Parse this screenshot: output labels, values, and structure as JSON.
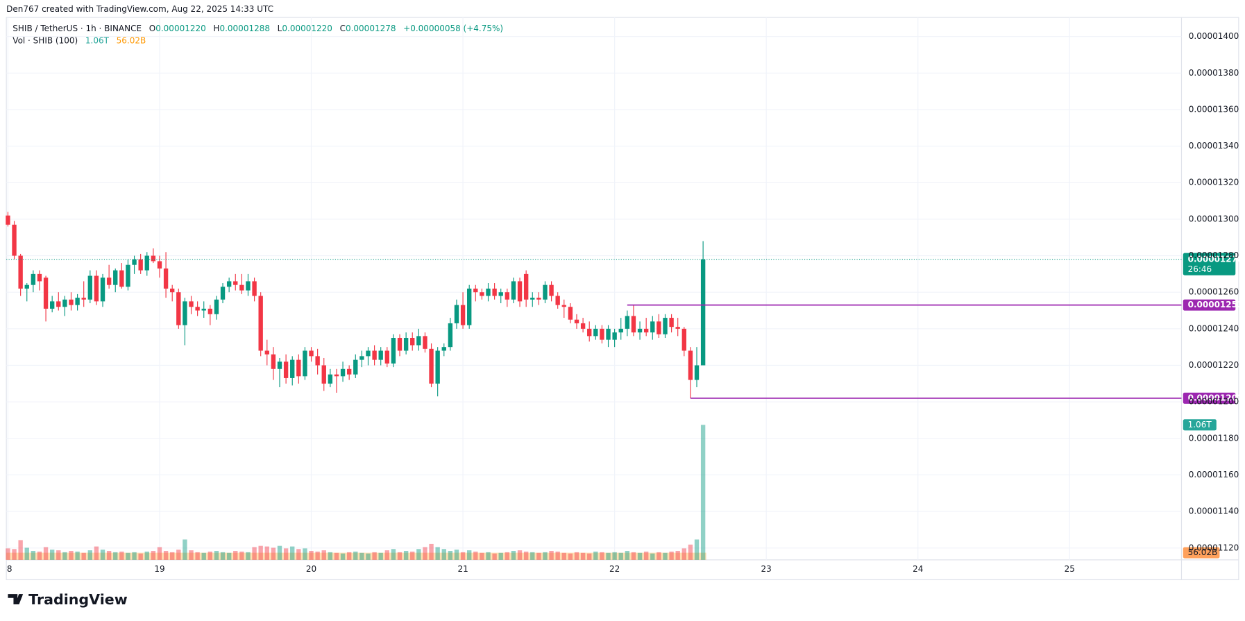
{
  "chart_data": {
    "type": "candlestick",
    "attribution": "Den767 created with TradingView.com, Aug 22, 2025 14:33 UTC",
    "title": "SHIB / TetherUS · 1h · BINANCE",
    "legend": [
      {
        "key": "O",
        "text": "0.00001220"
      },
      {
        "key": "H",
        "text": "0.00001288"
      },
      {
        "key": "L",
        "text": "0.00001220"
      },
      {
        "key": "C",
        "text": "0.00001278"
      }
    ],
    "change": "+0.00000058 (+4.75%)",
    "brand": "TradingView",
    "up_color": "#089981",
    "down_color": "#f23645",
    "open": [
      1.302e-05,
      1.297e-05,
      1.28e-05,
      1.262e-05,
      1.264e-05,
      1.27e-05,
      1.268e-05,
      1.251e-05,
      1.255e-05,
      1.252e-05,
      1.256e-05,
      1.253e-05,
      1.257e-05,
      1.256e-05,
      1.269e-05,
      1.255e-05,
      1.268e-05,
      1.264e-05,
      1.272e-05,
      1.263e-05,
      1.275e-05,
      1.278e-05,
      1.272e-05,
      1.28e-05,
      1.277e-05,
      1.273e-05,
      1.262e-05,
      1.26e-05,
      1.242e-05,
      1.255e-05,
      1.252e-05,
      1.25e-05,
      1.251e-05,
      1.248e-05,
      1.256e-05,
      1.263e-05,
      1.266e-05,
      1.264e-05,
      1.261e-05,
      1.266e-05,
      1.258e-05,
      1.228e-05,
      1.226e-05,
      1.218e-05,
      1.222e-05,
      1.213e-05,
      1.223e-05,
      1.214e-05,
      1.228e-05,
      1.225e-05,
      1.22e-05,
      1.21e-05,
      1.215e-05,
      1.214e-05,
      1.218e-05,
      1.215e-05,
      1.223e-05,
      1.225e-05,
      1.228e-05,
      1.223e-05,
      1.228e-05,
      1.221e-05,
      1.235e-05,
      1.228e-05,
      1.235e-05,
      1.231e-05,
      1.236e-05,
      1.229e-05,
      1.21e-05,
      1.228e-05,
      1.23e-05,
      1.243e-05,
      1.253e-05,
      1.242e-05,
      1.262e-05,
      1.26e-05,
      1.258e-05,
      1.262e-05,
      1.258e-05,
      1.26e-05,
      1.256e-05,
      1.266e-05,
      1.27e-05,
      1.256e-05,
      1.257e-05,
      1.256e-05,
      1.264e-05,
      1.258e-05,
      1.253e-05,
      1.252e-05,
      1.245e-05,
      1.243e-05,
      1.24e-05,
      1.236e-05,
      1.24e-05,
      1.234e-05,
      1.234e-05,
      1.238e-05,
      1.24e-05,
      1.247e-05,
      1.238e-05,
      1.24e-05,
      1.238e-05,
      1.244e-05,
      1.237e-05,
      1.246e-05,
      1.241e-05,
      1.24e-05,
      1.228e-05,
      1.212e-05,
      1.22e-05
    ],
    "high": [
      1.304e-05,
      1.299e-05,
      1.281e-05,
      1.265e-05,
      1.272e-05,
      1.272e-05,
      1.269e-05,
      1.258e-05,
      1.26e-05,
      1.258e-05,
      1.26e-05,
      1.259e-05,
      1.266e-05,
      1.272e-05,
      1.272e-05,
      1.27e-05,
      1.275e-05,
      1.273e-05,
      1.276e-05,
      1.278e-05,
      1.28e-05,
      1.281e-05,
      1.282e-05,
      1.284e-05,
      1.28e-05,
      1.282e-05,
      1.264e-05,
      1.262e-05,
      1.257e-05,
      1.258e-05,
      1.255e-05,
      1.255e-05,
      1.253e-05,
      1.258e-05,
      1.265e-05,
      1.268e-05,
      1.27e-05,
      1.27e-05,
      1.27e-05,
      1.268e-05,
      1.26e-05,
      1.234e-05,
      1.23e-05,
      1.224e-05,
      1.226e-05,
      1.225e-05,
      1.226e-05,
      1.23e-05,
      1.23e-05,
      1.229e-05,
      1.224e-05,
      1.218e-05,
      1.218e-05,
      1.222e-05,
      1.22e-05,
      1.226e-05,
      1.228e-05,
      1.23e-05,
      1.231e-05,
      1.23e-05,
      1.23e-05,
      1.237e-05,
      1.237e-05,
      1.238e-05,
      1.238e-05,
      1.24e-05,
      1.238e-05,
      1.232e-05,
      1.23e-05,
      1.232e-05,
      1.246e-05,
      1.256e-05,
      1.26e-05,
      1.264e-05,
      1.264e-05,
      1.262e-05,
      1.265e-05,
      1.265e-05,
      1.262e-05,
      1.262e-05,
      1.268e-05,
      1.268e-05,
      1.272e-05,
      1.26e-05,
      1.26e-05,
      1.266e-05,
      1.266e-05,
      1.26e-05,
      1.256e-05,
      1.254e-05,
      1.248e-05,
      1.246e-05,
      1.244e-05,
      1.242e-05,
      1.242e-05,
      1.242e-05,
      1.24e-05,
      1.246e-05,
      1.25e-05,
      1.253e-05,
      1.244e-05,
      1.246e-05,
      1.247e-05,
      1.248e-05,
      1.248e-05,
      1.248e-05,
      1.246e-05,
      1.241e-05,
      1.23e-05,
      1.23e-05,
      1.288e-05
    ],
    "low": [
      1.296e-05,
      1.278e-05,
      1.258e-05,
      1.255e-05,
      1.26e-05,
      1.261e-05,
      1.244e-05,
      1.249e-05,
      1.25e-05,
      1.247e-05,
      1.25e-05,
      1.25e-05,
      1.252e-05,
      1.254e-05,
      1.253e-05,
      1.252e-05,
      1.262e-05,
      1.26e-05,
      1.262e-05,
      1.261e-05,
      1.27e-05,
      1.27e-05,
      1.269e-05,
      1.276e-05,
      1.268e-05,
      1.257e-05,
      1.255e-05,
      1.24e-05,
      1.231e-05,
      1.248e-05,
      1.247e-05,
      1.246e-05,
      1.242e-05,
      1.245e-05,
      1.254e-05,
      1.26e-05,
      1.261e-05,
      1.259e-05,
      1.258e-05,
      1.255e-05,
      1.225e-05,
      1.22e-05,
      1.212e-05,
      1.208e-05,
      1.21e-05,
      1.209e-05,
      1.21e-05,
      1.212e-05,
      1.222e-05,
      1.215e-05,
      1.206e-05,
      1.208e-05,
      1.205e-05,
      1.211e-05,
      1.212e-05,
      1.213e-05,
      1.219e-05,
      1.22e-05,
      1.22e-05,
      1.22e-05,
      1.219e-05,
      1.219e-05,
      1.225e-05,
      1.226e-05,
      1.228e-05,
      1.228e-05,
      1.227e-05,
      1.208e-05,
      1.203e-05,
      1.225e-05,
      1.228e-05,
      1.24e-05,
      1.24e-05,
      1.24e-05,
      1.255e-05,
      1.256e-05,
      1.255e-05,
      1.256e-05,
      1.254e-05,
      1.252e-05,
      1.254e-05,
      1.252e-05,
      1.252e-05,
      1.252e-05,
      1.253e-05,
      1.254e-05,
      1.255e-05,
      1.251e-05,
      1.246e-05,
      1.243e-05,
      1.24e-05,
      1.238e-05,
      1.233e-05,
      1.234e-05,
      1.232e-05,
      1.23e-05,
      1.23e-05,
      1.234e-05,
      1.236e-05,
      1.236e-05,
      1.234e-05,
      1.236e-05,
      1.234e-05,
      1.235e-05,
      1.235e-05,
      1.238e-05,
      1.236e-05,
      1.225e-05,
      1.202e-05,
      1.208e-05,
      1.22e-05
    ],
    "close": [
      1.297e-05,
      1.28e-05,
      1.262e-05,
      1.264e-05,
      1.27e-05,
      1.266e-05,
      1.251e-05,
      1.255e-05,
      1.252e-05,
      1.256e-05,
      1.253e-05,
      1.257e-05,
      1.256e-05,
      1.269e-05,
      1.255e-05,
      1.268e-05,
      1.264e-05,
      1.272e-05,
      1.263e-05,
      1.275e-05,
      1.278e-05,
      1.272e-05,
      1.28e-05,
      1.277e-05,
      1.273e-05,
      1.262e-05,
      1.26e-05,
      1.242e-05,
      1.255e-05,
      1.252e-05,
      1.25e-05,
      1.251e-05,
      1.248e-05,
      1.256e-05,
      1.263e-05,
      1.266e-05,
      1.264e-05,
      1.261e-05,
      1.266e-05,
      1.258e-05,
      1.228e-05,
      1.226e-05,
      1.218e-05,
      1.222e-05,
      1.213e-05,
      1.223e-05,
      1.214e-05,
      1.228e-05,
      1.225e-05,
      1.22e-05,
      1.21e-05,
      1.215e-05,
      1.214e-05,
      1.218e-05,
      1.215e-05,
      1.223e-05,
      1.225e-05,
      1.228e-05,
      1.223e-05,
      1.228e-05,
      1.221e-05,
      1.235e-05,
      1.228e-05,
      1.235e-05,
      1.231e-05,
      1.236e-05,
      1.229e-05,
      1.21e-05,
      1.228e-05,
      1.23e-05,
      1.243e-05,
      1.253e-05,
      1.242e-05,
      1.262e-05,
      1.26e-05,
      1.258e-05,
      1.262e-05,
      1.258e-05,
      1.26e-05,
      1.256e-05,
      1.266e-05,
      1.255e-05,
      1.256e-05,
      1.257e-05,
      1.256e-05,
      1.264e-05,
      1.258e-05,
      1.253e-05,
      1.252e-05,
      1.245e-05,
      1.243e-05,
      1.24e-05,
      1.236e-05,
      1.24e-05,
      1.234e-05,
      1.24e-05,
      1.238e-05,
      1.24e-05,
      1.247e-05,
      1.238e-05,
      1.24e-05,
      1.238e-05,
      1.244e-05,
      1.237e-05,
      1.246e-05,
      1.241e-05,
      1.24e-05,
      1.228e-05,
      1.212e-05,
      1.22e-05,
      1.278e-05
    ],
    "volume": {
      "name": "Vol · SHIB (100)",
      "last_label": "1.06T",
      "ma": 56020000000,
      "ma_label": "56.02B",
      "values": [
        90000000000.0,
        85000000000.0,
        155000000000.0,
        95000000000.0,
        70000000000.0,
        65000000000.0,
        100000000000.0,
        80000000000.0,
        75000000000.0,
        60000000000.0,
        70000000000.0,
        65000000000.0,
        55000000000.0,
        75000000000.0,
        105000000000.0,
        80000000000.0,
        70000000000.0,
        60000000000.0,
        65000000000.0,
        55000000000.0,
        60000000000.0,
        50000000000.0,
        65000000000.0,
        70000000000.0,
        100000000000.0,
        70000000000.0,
        60000000000.0,
        80000000000.0,
        160000000000.0,
        75000000000.0,
        60000000000.0,
        55000000000.0,
        65000000000.0,
        70000000000.0,
        60000000000.0,
        55000000000.0,
        70000000000.0,
        65000000000.0,
        60000000000.0,
        100000000000.0,
        110000000000.0,
        105000000000.0,
        95000000000.0,
        110000000000.0,
        90000000000.0,
        105000000000.0,
        85000000000.0,
        90000000000.0,
        70000000000.0,
        65000000000.0,
        75000000000.0,
        60000000000.0,
        55000000000.0,
        50000000000.0,
        60000000000.0,
        65000000000.0,
        55000000000.0,
        50000000000.0,
        60000000000.0,
        55000000000.0,
        75000000000.0,
        85000000000.0,
        60000000000.0,
        70000000000.0,
        65000000000.0,
        85000000000.0,
        100000000000.0,
        125000000000.0,
        100000000000.0,
        85000000000.0,
        70000000000.0,
        80000000000.0,
        60000000000.0,
        75000000000.0,
        65000000000.0,
        55000000000.0,
        60000000000.0,
        50000000000.0,
        55000000000.0,
        60000000000.0,
        70000000000.0,
        75000000000.0,
        65000000000.0,
        60000000000.0,
        55000000000.0,
        60000000000.0,
        70000000000.0,
        65000000000.0,
        55000000000.0,
        50000000000.0,
        60000000000.0,
        55000000000.0,
        50000000000.0,
        65000000000.0,
        60000000000.0,
        55000000000.0,
        60000000000.0,
        55000000000.0,
        70000000000.0,
        60000000000.0,
        55000000000.0,
        65000000000.0,
        50000000000.0,
        60000000000.0,
        55000000000.0,
        65000000000.0,
        70000000000.0,
        90000000000.0,
        120000000000.0,
        160000000000.0,
        1060000000000.0
      ]
    },
    "last_price": {
      "value": 1.278e-05,
      "label": "0.00001278",
      "countdown": "26:46"
    },
    "levels": [
      {
        "value": 1.253e-05,
        "label": "0.00001253",
        "from": 98,
        "color": "#9c27b0"
      },
      {
        "value": 1.202e-05,
        "label": "0.00001202",
        "from": 108,
        "color": "#9c27b0"
      }
    ],
    "xlim": [
      -0.25,
      185.7
    ],
    "xticks": [
      {
        "value": 0,
        "label": "8"
      },
      {
        "value": 24,
        "label": "19"
      },
      {
        "value": 48,
        "label": "20"
      },
      {
        "value": 72,
        "label": "21"
      },
      {
        "value": 96,
        "label": "22"
      },
      {
        "value": 120,
        "label": "23"
      },
      {
        "value": 144,
        "label": "24"
      },
      {
        "value": 168,
        "label": "25"
      }
    ],
    "ylim": [
      1.1135e-05,
      1.41043e-05
    ],
    "yticks": [
      {
        "value": 1.12e-05,
        "label": "0.00001120"
      },
      {
        "value": 1.14e-05,
        "label": "0.00001140"
      },
      {
        "value": 1.16e-05,
        "label": "0.00001160"
      },
      {
        "value": 1.18e-05,
        "label": "0.00001180"
      },
      {
        "value": 1.2e-05,
        "label": "0.00001200"
      },
      {
        "value": 1.22e-05,
        "label": "0.00001220"
      },
      {
        "value": 1.24e-05,
        "label": "0.00001240"
      },
      {
        "value": 1.26e-05,
        "label": "0.00001260"
      },
      {
        "value": 1.28e-05,
        "label": "0.00001280"
      },
      {
        "value": 1.3e-05,
        "label": "0.00001300"
      },
      {
        "value": 1.32e-05,
        "label": "0.00001320"
      },
      {
        "value": 1.34e-05,
        "label": "0.00001340"
      },
      {
        "value": 1.36e-05,
        "label": "0.00001360"
      },
      {
        "value": 1.38e-05,
        "label": "0.00001380"
      },
      {
        "value": 1.4e-05,
        "label": "0.00001400"
      }
    ],
    "grid": true
  }
}
